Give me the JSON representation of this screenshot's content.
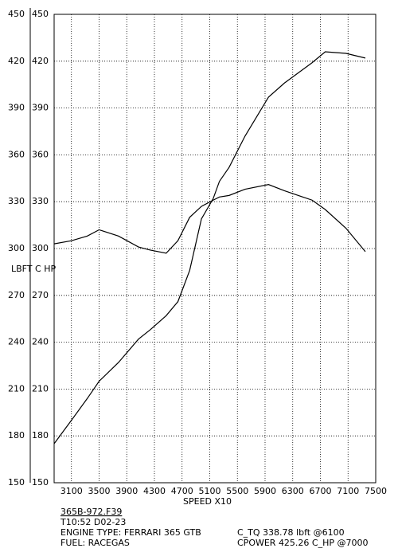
{
  "chart_data": {
    "type": "line",
    "y_label": "LBFT  C  HP",
    "x_label": "SPEED     X10",
    "x": [
      2850,
      3100,
      3330,
      3500,
      3780,
      4070,
      4240,
      4470,
      4640,
      4810,
      4980,
      5150,
      5240,
      5380,
      5610,
      5950,
      6180,
      6580,
      6770,
      7070,
      7350
    ],
    "series": [
      {
        "name": "C_HP",
        "color": "#000000",
        "values": [
          175,
          190,
          204,
          215,
          227,
          242,
          248,
          257,
          266,
          286,
          319,
          332,
          343,
          352,
          372,
          397,
          406,
          419,
          426,
          425,
          422
        ]
      },
      {
        "name": "LBFT",
        "color": "#000000",
        "values": [
          303,
          305,
          308,
          312,
          308,
          301,
          299,
          297,
          305,
          320,
          327,
          331,
          333,
          334,
          338,
          341,
          337,
          331,
          325,
          313,
          298
        ]
      }
    ],
    "xlim": [
      2850,
      7500
    ],
    "xticks": [
      3100,
      3500,
      3900,
      4300,
      4700,
      5100,
      5500,
      5900,
      6300,
      6700,
      7100,
      7500
    ],
    "ylim": [
      150,
      450
    ],
    "yticks": [
      150,
      180,
      210,
      240,
      270,
      300,
      330,
      360,
      390,
      420,
      450
    ],
    "grid": true,
    "footer": {
      "file": "365B-972.F39",
      "time": "T10:52  D02-23",
      "engine": "ENGINE TYPE: FERRARI  365  GTB",
      "fuel": "FUEL: RACEGAS",
      "tq": "C_TQ    338.78   lbft   @6100",
      "power": "CPOWER   425.26   C_HP   @7000"
    }
  }
}
